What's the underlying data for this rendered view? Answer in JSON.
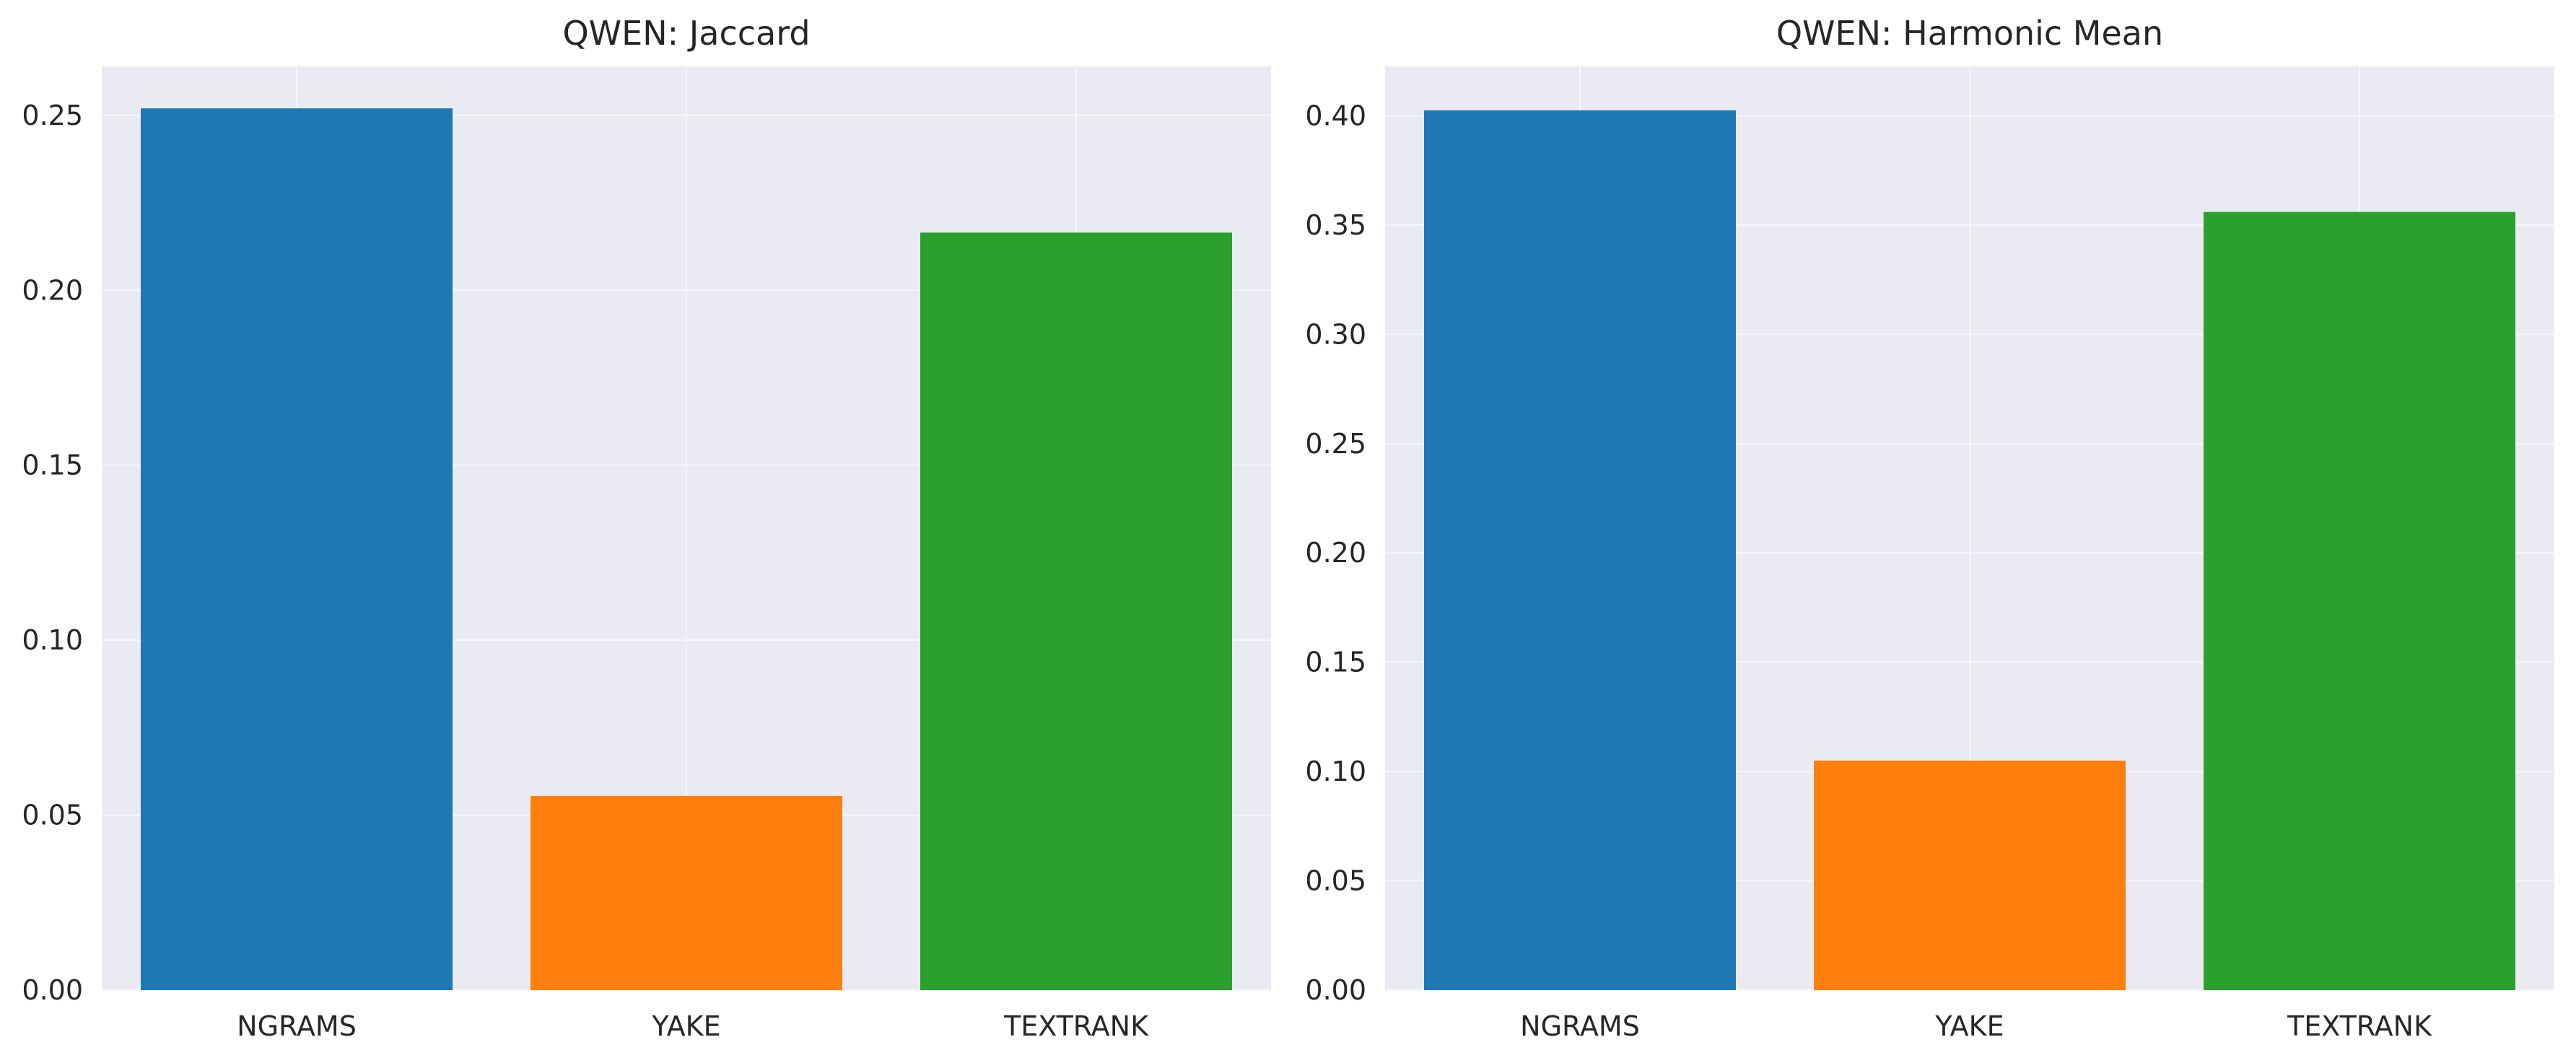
{
  "chart_data": [
    {
      "type": "bar",
      "title": "QWEN: Jaccard",
      "categories": [
        "NGRAMS",
        "YAKE",
        "TEXTRANK"
      ],
      "values": [
        0.252,
        0.0555,
        0.2165
      ],
      "colors": [
        "#1f77b4",
        "#ff7f0e",
        "#2ca02c"
      ],
      "xlabel": "",
      "ylabel": "",
      "ylim": [
        0,
        0.264
      ],
      "yticks": [
        0.0,
        0.05,
        0.1,
        0.15,
        0.2,
        0.25
      ],
      "ytick_labels": [
        "0.00",
        "0.05",
        "0.10",
        "0.15",
        "0.20",
        "0.25"
      ],
      "grid": true,
      "background": "#eaeaf2",
      "grid_color": "#f7f7fb"
    },
    {
      "type": "bar",
      "title": "QWEN: Harmonic Mean",
      "categories": [
        "NGRAMS",
        "YAKE",
        "TEXTRANK"
      ],
      "values": [
        0.4025,
        0.105,
        0.356
      ],
      "colors": [
        "#1f77b4",
        "#ff7f0e",
        "#2ca02c"
      ],
      "xlabel": "",
      "ylabel": "",
      "ylim": [
        0,
        0.4226
      ],
      "yticks": [
        0.0,
        0.05,
        0.1,
        0.15,
        0.2,
        0.25,
        0.3,
        0.35,
        0.4
      ],
      "ytick_labels": [
        "0.00",
        "0.05",
        "0.10",
        "0.15",
        "0.20",
        "0.25",
        "0.30",
        "0.35",
        "0.40"
      ],
      "grid": true,
      "background": "#eaeaf2",
      "grid_color": "#f7f7fb"
    }
  ]
}
